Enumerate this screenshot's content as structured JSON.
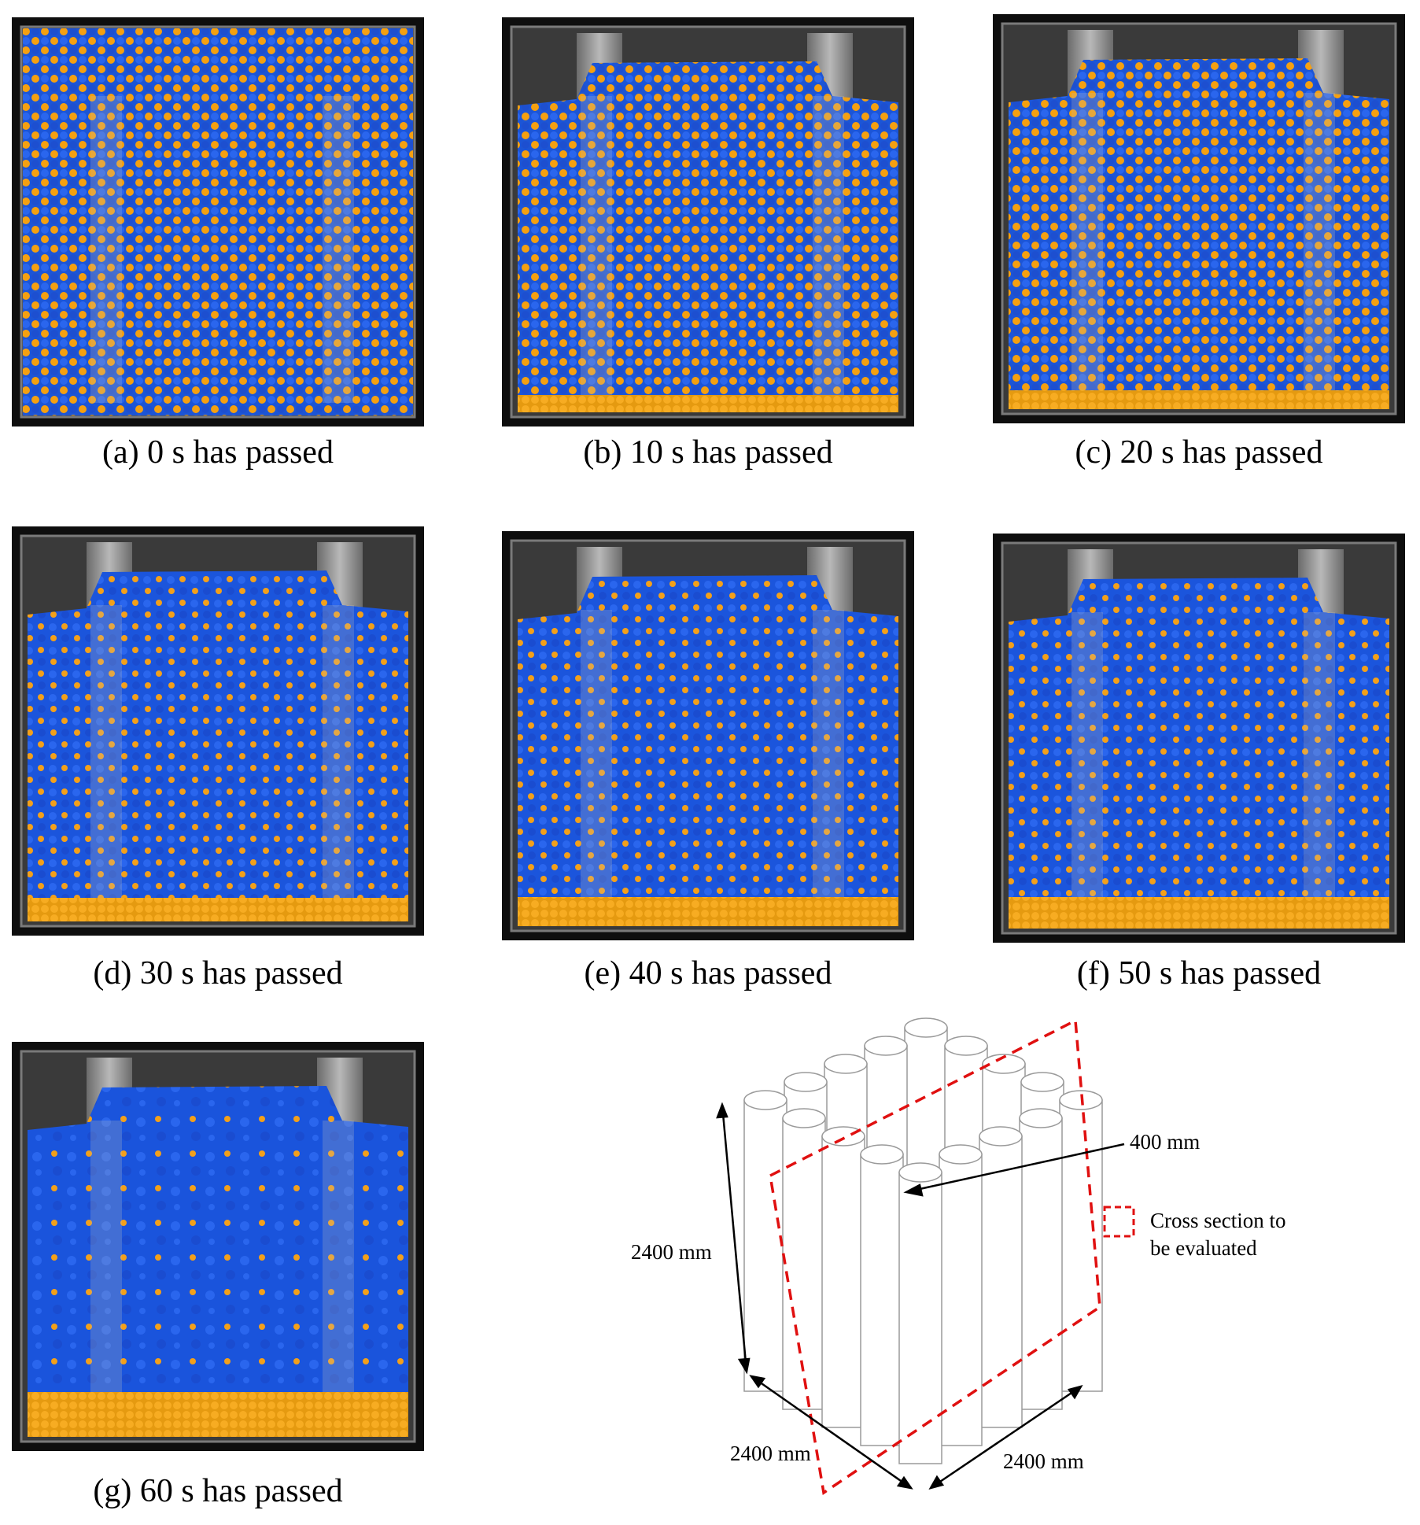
{
  "panels": [
    {
      "caption": "(a) 0 s has passed"
    },
    {
      "caption": "(b) 10 s has passed"
    },
    {
      "caption": "(c) 20 s has passed"
    },
    {
      "caption": "(d) 30 s has passed"
    },
    {
      "caption": "(e) 40 s has passed"
    },
    {
      "caption": "(f) 50 s has passed"
    },
    {
      "caption": "(g) 60 s has passed"
    }
  ],
  "diagram": {
    "diameter_label": "400 mm",
    "height_label": "2400 mm",
    "depth_label": "2400 mm",
    "width_label": "2400 mm",
    "legend": {
      "lines": [
        "Cross section to",
        "be evaluated"
      ]
    }
  }
}
